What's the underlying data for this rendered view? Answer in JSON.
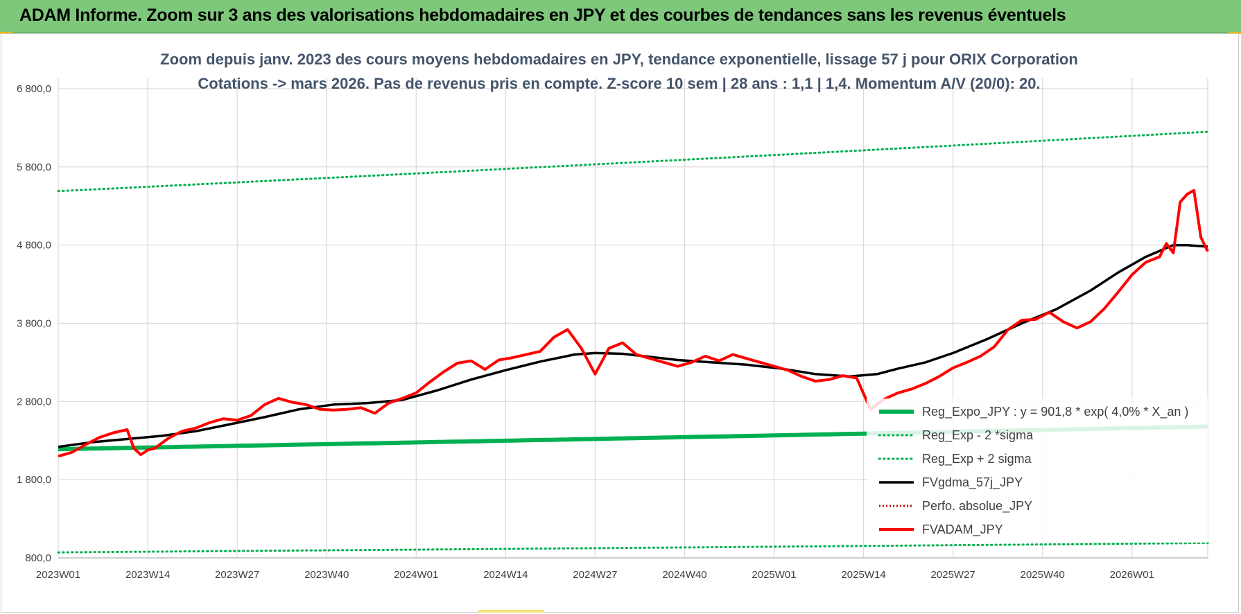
{
  "header": {
    "title": "ADAM Informe. Zoom sur 3 ans des valorisations hebdomadaires en JPY et des courbes de tendances sans les revenus éventuels"
  },
  "colors": {
    "banner": "#7ec87c",
    "trend": "#00b050",
    "fvgdma": "#000000",
    "fvadam": "#ff0000",
    "perfo": "#c00000",
    "grid": "#d9d9d9"
  },
  "chart_data": {
    "type": "line",
    "title_lines": [
      "Zoom depuis janv. 2023 des cours moyens hebdomadaires en JPY, tendance exponentielle, lissage 57 j pour ORIX Corporation",
      "Cotations -> mars 2026. Pas de revenus pris en compte. Z-score 10 sem | 28 ans : 1,1 | 1,4. Momentum A/V (20/0): 20."
    ],
    "ylim": [
      800,
      6800
    ],
    "y_ticks": [
      800,
      1800,
      2800,
      3800,
      4800,
      5800,
      6800
    ],
    "y_tick_labels": [
      "800,0",
      "1 800,0",
      "2 800,0",
      "3 800,0",
      "4 800,0",
      "5 800,0",
      "6 800,0"
    ],
    "x_range": [
      0,
      167
    ],
    "x_ticks": [
      0,
      13,
      26,
      39,
      52,
      65,
      78,
      91,
      104,
      117,
      130,
      143,
      156
    ],
    "x_tick_labels": [
      "2023W01",
      "2023W14",
      "2023W27",
      "2023W40",
      "2024W01",
      "2024W14",
      "2024W27",
      "2024W40",
      "2025W01",
      "2025W14",
      "2025W27",
      "2025W40",
      "2026W01"
    ],
    "grid": true,
    "legend": {
      "position": "bottom-right",
      "items": [
        {
          "key": "reg_expo",
          "label": "Reg_Expo_JPY : y = 901,8 * exp( 4,0% *  X_an )",
          "style": "thick-green"
        },
        {
          "key": "reg_minus",
          "label": "Reg_Exp - 2 *sigma",
          "style": "dotted-green"
        },
        {
          "key": "reg_plus",
          "label": "Reg_Exp + 2 sigma",
          "style": "dotted-green"
        },
        {
          "key": "fvgdma",
          "label": "FVgdma_57j_JPY",
          "style": "solid-black"
        },
        {
          "key": "perfo",
          "label": "Perfo. absolue_JPY",
          "style": "dotted-red"
        },
        {
          "key": "fvadam",
          "label": "FVADAM_JPY",
          "style": "solid-red"
        }
      ]
    },
    "series": [
      {
        "name": "Reg_Expo_JPY",
        "key": "reg_expo",
        "x": [
          0,
          167
        ],
        "values": [
          2190,
          2480
        ]
      },
      {
        "name": "Reg_Exp - 2 *sigma",
        "key": "reg_minus",
        "x": [
          0,
          167
        ],
        "values": [
          870,
          990
        ]
      },
      {
        "name": "Reg_Exp + 2 sigma",
        "key": "reg_plus",
        "x": [
          0,
          167
        ],
        "values": [
          5490,
          6250
        ]
      },
      {
        "name": "FVgdma_57j_JPY",
        "key": "fvgdma",
        "x": [
          0,
          5,
          10,
          15,
          20,
          25,
          30,
          35,
          40,
          45,
          50,
          55,
          60,
          65,
          70,
          75,
          78,
          82,
          86,
          90,
          95,
          100,
          105,
          110,
          115,
          119,
          122,
          126,
          130,
          135,
          140,
          145,
          150,
          154,
          158,
          162,
          164,
          167
        ],
        "values": [
          2220,
          2280,
          2320,
          2360,
          2420,
          2510,
          2600,
          2700,
          2760,
          2780,
          2820,
          2940,
          3080,
          3200,
          3310,
          3400,
          3420,
          3410,
          3370,
          3330,
          3300,
          3270,
          3220,
          3150,
          3120,
          3150,
          3220,
          3300,
          3420,
          3600,
          3800,
          3980,
          4220,
          4450,
          4650,
          4800,
          4800,
          4780
        ]
      },
      {
        "name": "FVADAM_JPY",
        "key": "fvadam",
        "x": [
          0,
          2,
          4,
          6,
          8,
          10,
          11,
          12,
          13,
          14,
          16,
          18,
          20,
          22,
          24,
          26,
          28,
          30,
          32,
          34,
          36,
          38,
          40,
          42,
          44,
          46,
          48,
          50,
          52,
          54,
          56,
          58,
          60,
          62,
          64,
          66,
          68,
          70,
          72,
          74,
          76,
          78,
          80,
          82,
          84,
          86,
          88,
          90,
          92,
          94,
          96,
          98,
          100,
          102,
          104,
          106,
          108,
          110,
          112,
          114,
          116,
          118,
          120,
          122,
          124,
          126,
          128,
          130,
          132,
          134,
          136,
          138,
          140,
          142,
          144,
          146,
          148,
          150,
          152,
          154,
          156,
          158,
          160,
          161,
          162,
          163,
          164,
          165,
          166,
          167
        ],
        "values": [
          2100,
          2150,
          2250,
          2340,
          2400,
          2440,
          2200,
          2120,
          2180,
          2200,
          2330,
          2420,
          2460,
          2530,
          2580,
          2560,
          2620,
          2760,
          2840,
          2790,
          2760,
          2700,
          2690,
          2700,
          2720,
          2650,
          2780,
          2840,
          2910,
          3050,
          3180,
          3290,
          3320,
          3210,
          3330,
          3360,
          3400,
          3440,
          3620,
          3720,
          3480,
          3150,
          3480,
          3550,
          3400,
          3350,
          3300,
          3250,
          3300,
          3380,
          3320,
          3400,
          3350,
          3300,
          3250,
          3200,
          3120,
          3060,
          3080,
          3130,
          3100,
          2700,
          2830,
          2910,
          2960,
          3030,
          3120,
          3230,
          3300,
          3380,
          3500,
          3720,
          3840,
          3850,
          3940,
          3820,
          3740,
          3820,
          3990,
          4200,
          4420,
          4580,
          4650,
          4820,
          4700,
          5350,
          5450,
          5500,
          4900,
          4720
        ]
      },
      {
        "name": "Perfo. absolue_JPY",
        "key": "perfo",
        "x": [],
        "values": []
      }
    ]
  }
}
